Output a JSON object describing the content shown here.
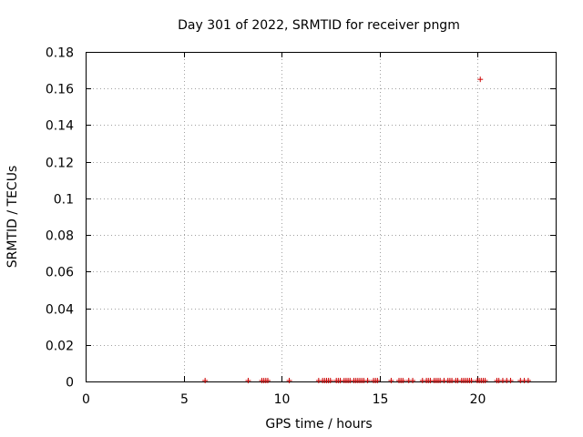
{
  "chart_data": {
    "type": "scatter",
    "title": "Day 301 of 2022, SRMTID for receiver pngm",
    "xlabel": "GPS time / hours",
    "ylabel": "SRMTID / TECUs",
    "xlim": [
      0,
      24
    ],
    "ylim": [
      0,
      0.18
    ],
    "x_ticks": [
      0,
      5,
      10,
      15,
      20
    ],
    "x_tick_labels": [
      "0",
      "5",
      "10",
      "15",
      "20"
    ],
    "y_ticks": [
      0,
      0.02,
      0.04,
      0.06,
      0.08,
      0.1,
      0.12,
      0.14,
      0.16,
      0.18
    ],
    "y_tick_labels": [
      "0",
      "0.02",
      "0.04",
      "0.06",
      "0.08",
      "0.1",
      "0.12",
      "0.14",
      "0.16",
      "0.18"
    ],
    "grid": true,
    "marker": "+",
    "color": "#cc0000",
    "series": [
      {
        "name": "SRMTID",
        "x": [
          6.1,
          8.3,
          9.0,
          9.1,
          9.2,
          9.3,
          10.4,
          11.9,
          12.1,
          12.2,
          12.3,
          12.4,
          12.5,
          12.8,
          12.9,
          13.0,
          13.2,
          13.3,
          13.4,
          13.5,
          13.7,
          13.8,
          13.9,
          14.0,
          14.1,
          14.2,
          14.4,
          14.7,
          14.8,
          14.9,
          15.6,
          16.0,
          16.1,
          16.2,
          16.5,
          16.7,
          17.2,
          17.4,
          17.5,
          17.6,
          17.8,
          17.9,
          18.0,
          18.1,
          18.3,
          18.5,
          18.6,
          18.7,
          18.9,
          19.0,
          19.2,
          19.3,
          19.4,
          19.5,
          19.6,
          19.7,
          20.0,
          20.1,
          20.15,
          20.2,
          20.3,
          20.4,
          21.0,
          21.1,
          21.3,
          21.5,
          21.7,
          22.2,
          22.4,
          22.6
        ],
        "y": [
          0.0005,
          0.0005,
          0.0005,
          0.0005,
          0.0005,
          0.0005,
          0.0005,
          0.0005,
          0.0005,
          0.0005,
          0.0005,
          0.0005,
          0.0005,
          0.0005,
          0.0005,
          0.0005,
          0.0005,
          0.0005,
          0.0005,
          0.0005,
          0.0005,
          0.0005,
          0.0005,
          0.0005,
          0.0005,
          0.0005,
          0.0005,
          0.0005,
          0.0005,
          0.0005,
          0.0005,
          0.0005,
          0.0005,
          0.0005,
          0.0005,
          0.0005,
          0.0005,
          0.0005,
          0.0005,
          0.0005,
          0.0005,
          0.0005,
          0.0005,
          0.0005,
          0.0005,
          0.0005,
          0.0005,
          0.0005,
          0.0005,
          0.0005,
          0.0005,
          0.0005,
          0.0005,
          0.0005,
          0.0005,
          0.0005,
          0.0005,
          0.0005,
          0.165,
          0.0005,
          0.0005,
          0.0005,
          0.0005,
          0.0005,
          0.0005,
          0.0005,
          0.0005,
          0.0005,
          0.0005,
          0.0005
        ]
      }
    ]
  }
}
